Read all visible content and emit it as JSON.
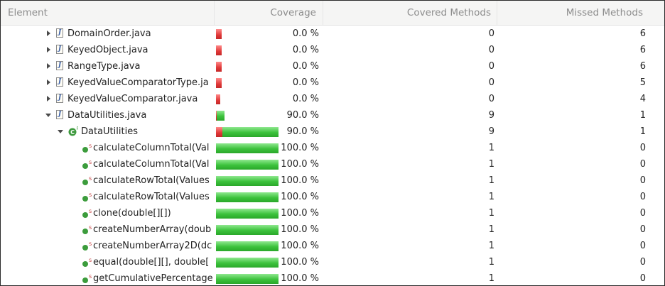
{
  "header": {
    "element": "Element",
    "coverage": "Coverage",
    "covered_methods": "Covered Methods",
    "missed_methods": "Missed Methods"
  },
  "colors": {
    "covered": "#3cc23c",
    "missed": "#e03838"
  },
  "rows": [
    {
      "name": "DomainOrder.java",
      "type": "file",
      "expander": "collapsed",
      "coverage": "0.0 %",
      "covered_fraction": 0.0,
      "covered": "0",
      "missed": "6"
    },
    {
      "name": "KeyedObject.java",
      "type": "file",
      "expander": "collapsed",
      "coverage": "0.0 %",
      "covered_fraction": 0.0,
      "covered": "0",
      "missed": "6"
    },
    {
      "name": "RangeType.java",
      "type": "file",
      "expander": "collapsed",
      "coverage": "0.0 %",
      "covered_fraction": 0.0,
      "covered": "0",
      "missed": "6"
    },
    {
      "name": "KeyedValueComparatorType.ja",
      "type": "file",
      "expander": "collapsed",
      "coverage": "0.0 %",
      "covered_fraction": 0.0,
      "covered": "0",
      "missed": "5"
    },
    {
      "name": "KeyedValueComparator.java",
      "type": "file",
      "expander": "collapsed",
      "coverage": "0.0 %",
      "covered_fraction": 0.0,
      "covered": "0",
      "missed": "4"
    },
    {
      "name": "DataUtilities.java",
      "type": "file",
      "expander": "expanded",
      "coverage": "90.0 %",
      "covered_fraction": 0.9,
      "covered": "9",
      "missed": "1"
    },
    {
      "name": "DataUtilities",
      "type": "class",
      "expander": "expanded",
      "coverage": "90.0 %",
      "covered_fraction": 0.9,
      "covered": "9",
      "missed": "1"
    },
    {
      "name": "calculateColumnTotal(Val",
      "type": "method",
      "coverage": "100.0 %",
      "covered_fraction": 1.0,
      "covered": "1",
      "missed": "0"
    },
    {
      "name": "calculateColumnTotal(Val",
      "type": "method",
      "coverage": "100.0 %",
      "covered_fraction": 1.0,
      "covered": "1",
      "missed": "0"
    },
    {
      "name": "calculateRowTotal(Values",
      "type": "method",
      "coverage": "100.0 %",
      "covered_fraction": 1.0,
      "covered": "1",
      "missed": "0"
    },
    {
      "name": "calculateRowTotal(Values",
      "type": "method",
      "coverage": "100.0 %",
      "covered_fraction": 1.0,
      "covered": "1",
      "missed": "0"
    },
    {
      "name": "clone(double[][])",
      "type": "method",
      "coverage": "100.0 %",
      "covered_fraction": 1.0,
      "covered": "1",
      "missed": "0"
    },
    {
      "name": "createNumberArray(doub",
      "type": "method",
      "coverage": "100.0 %",
      "covered_fraction": 1.0,
      "covered": "1",
      "missed": "0"
    },
    {
      "name": "createNumberArray2D(dc",
      "type": "method",
      "coverage": "100.0 %",
      "covered_fraction": 1.0,
      "covered": "1",
      "missed": "0"
    },
    {
      "name": "equal(double[][], double[",
      "type": "method",
      "coverage": "100.0 %",
      "covered_fraction": 1.0,
      "covered": "1",
      "missed": "0"
    },
    {
      "name": "getCumulativePercentage",
      "type": "method",
      "coverage": "100.0 %",
      "covered_fraction": 1.0,
      "covered": "1",
      "missed": "0"
    }
  ]
}
